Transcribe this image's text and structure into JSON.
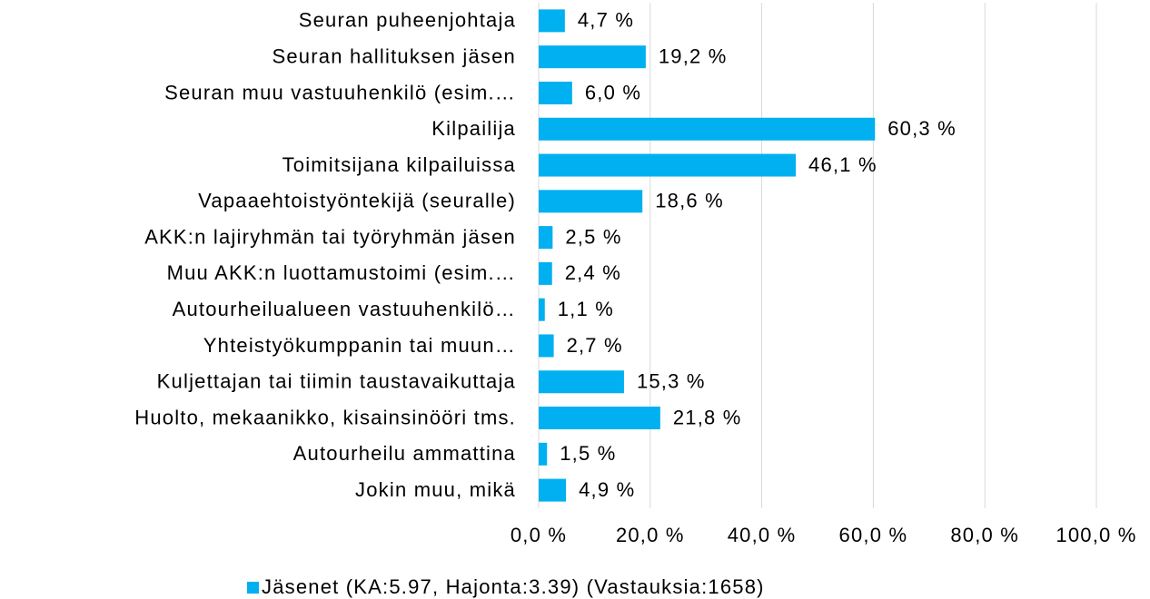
{
  "chart_data": {
    "type": "hbar",
    "categories": [
      "Seuran puheenjohtaja",
      "Seuran hallituksen jäsen",
      "Seuran muu vastuuhenkilö (esim.…",
      "Kilpailija",
      "Toimitsijana kilpailuissa",
      "Vapaaehtoistyöntekijä (seuralle)",
      "AKK:n lajiryhmän tai työryhmän jäsen",
      "Muu AKK:n luottamustoimi (esim.…",
      "Autourheilualueen vastuuhenkilö…",
      "Yhteistyökumppanin tai muun…",
      "Kuljettajan tai tiimin taustavaikuttaja",
      "Huolto, mekaanikko, kisainsinööri tms.",
      "Autourheilu ammattina",
      "Jokin muu, mikä"
    ],
    "series": [
      {
        "name": "Jäsenet (KA:5.97, Hajonta:3.39) (Vastauksia:1658)",
        "color": "#00b0f0",
        "values": [
          4.7,
          19.2,
          6.0,
          60.3,
          46.1,
          18.6,
          2.5,
          2.4,
          1.1,
          2.7,
          15.3,
          21.8,
          1.5,
          4.9
        ],
        "value_labels": [
          "4,7 %",
          "19,2 %",
          "6,0 %",
          "60,3 %",
          "46,1 %",
          "18,6 %",
          "2,5 %",
          "2,4 %",
          "1,1 %",
          "2,7 %",
          "15,3 %",
          "21,8 %",
          "1,5 %",
          "4,9 %"
        ]
      }
    ],
    "xlim": [
      0,
      100
    ],
    "xticks": [
      {
        "value": 0,
        "label": "0,0 %"
      },
      {
        "value": 20,
        "label": "20,0 %"
      },
      {
        "value": 40,
        "label": "40,0 %"
      },
      {
        "value": 60,
        "label": "60,0 %"
      },
      {
        "value": 80,
        "label": "80,0 %"
      },
      {
        "value": 100,
        "label": "100,0 %"
      }
    ],
    "grid": true,
    "legend": "bottom"
  }
}
